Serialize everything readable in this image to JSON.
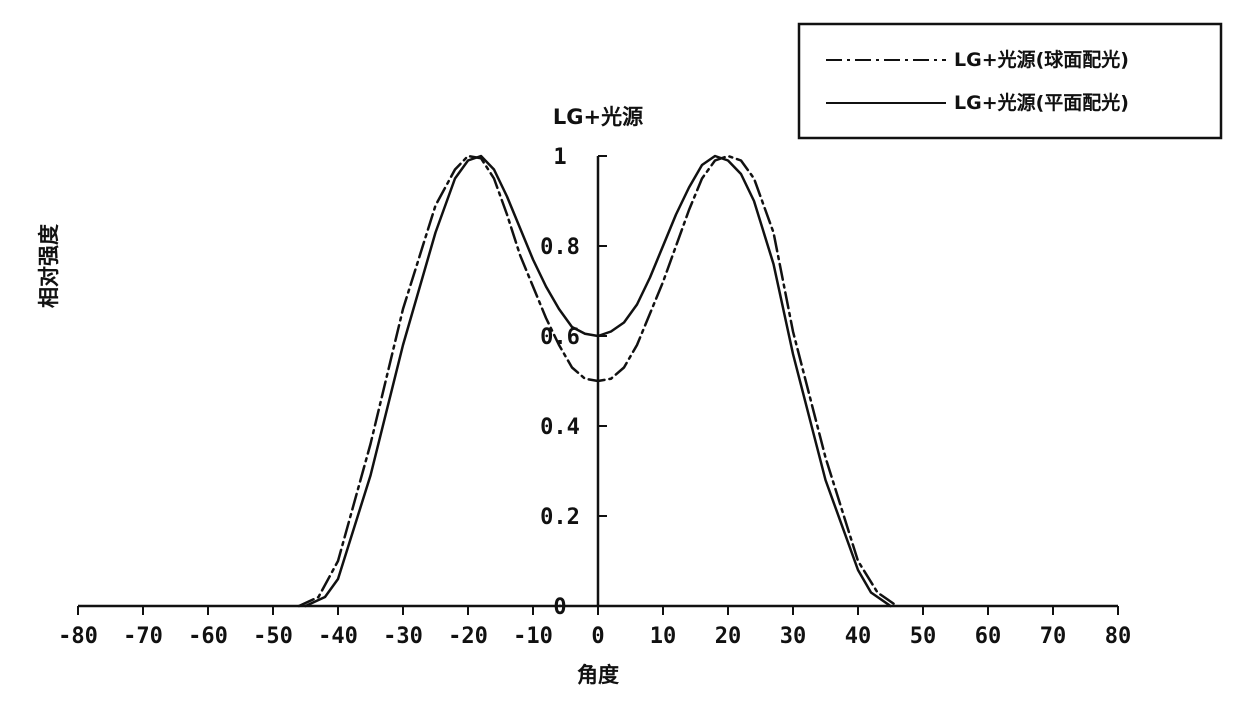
{
  "chart_data": {
    "type": "line",
    "title": "LG+光源",
    "xlabel": "角度",
    "ylabel": "相对强度",
    "xlim": [
      -80,
      80
    ],
    "ylim": [
      0,
      1
    ],
    "xticks": [
      -80,
      -70,
      -60,
      -50,
      -40,
      -30,
      -20,
      -10,
      0,
      10,
      20,
      30,
      40,
      50,
      60,
      70,
      80
    ],
    "yticks": [
      {
        "value": 0,
        "label": "0"
      },
      {
        "value": 0.2,
        "label": "0.2"
      },
      {
        "value": 0.4,
        "label": "0.4"
      },
      {
        "value": 0.6,
        "label": "0.6"
      },
      {
        "value": 0.8,
        "label": "0.8"
      },
      {
        "value": 1,
        "label": "1"
      }
    ],
    "grid": false,
    "legend_position": "top-right",
    "series": [
      {
        "name": "LG+光源(球面配光)",
        "line_style": "dash-dot",
        "color": "#111111",
        "x": [
          -46,
          -43,
          -40,
          -35,
          -30,
          -25,
          -22,
          -20,
          -18,
          -16,
          -14,
          -12,
          -10,
          -8,
          -6,
          -4,
          -2,
          0,
          2,
          4,
          6,
          8,
          10,
          12,
          14,
          16,
          18,
          20,
          22,
          24,
          27,
          30,
          35,
          40,
          43,
          46
        ],
        "y": [
          0.0,
          0.02,
          0.1,
          0.36,
          0.66,
          0.89,
          0.97,
          1.0,
          0.995,
          0.95,
          0.87,
          0.78,
          0.71,
          0.64,
          0.58,
          0.53,
          0.505,
          0.5,
          0.505,
          0.53,
          0.58,
          0.65,
          0.72,
          0.8,
          0.88,
          0.95,
          0.99,
          1.0,
          0.99,
          0.95,
          0.83,
          0.61,
          0.33,
          0.1,
          0.03,
          0.0
        ]
      },
      {
        "name": "LG+光源(平面配光)",
        "line_style": "solid",
        "color": "#111111",
        "x": [
          -45,
          -42,
          -40,
          -35,
          -30,
          -25,
          -22,
          -20,
          -18,
          -16,
          -14,
          -12,
          -10,
          -8,
          -6,
          -4,
          -2,
          0,
          2,
          4,
          6,
          8,
          10,
          12,
          14,
          16,
          18,
          20,
          22,
          24,
          27,
          30,
          35,
          40,
          42,
          45
        ],
        "y": [
          0.0,
          0.02,
          0.06,
          0.29,
          0.58,
          0.83,
          0.95,
          0.99,
          1.0,
          0.97,
          0.91,
          0.84,
          0.77,
          0.71,
          0.66,
          0.62,
          0.605,
          0.6,
          0.61,
          0.63,
          0.67,
          0.73,
          0.8,
          0.87,
          0.93,
          0.98,
          1.0,
          0.99,
          0.96,
          0.9,
          0.76,
          0.56,
          0.28,
          0.08,
          0.03,
          0.0
        ]
      }
    ]
  }
}
